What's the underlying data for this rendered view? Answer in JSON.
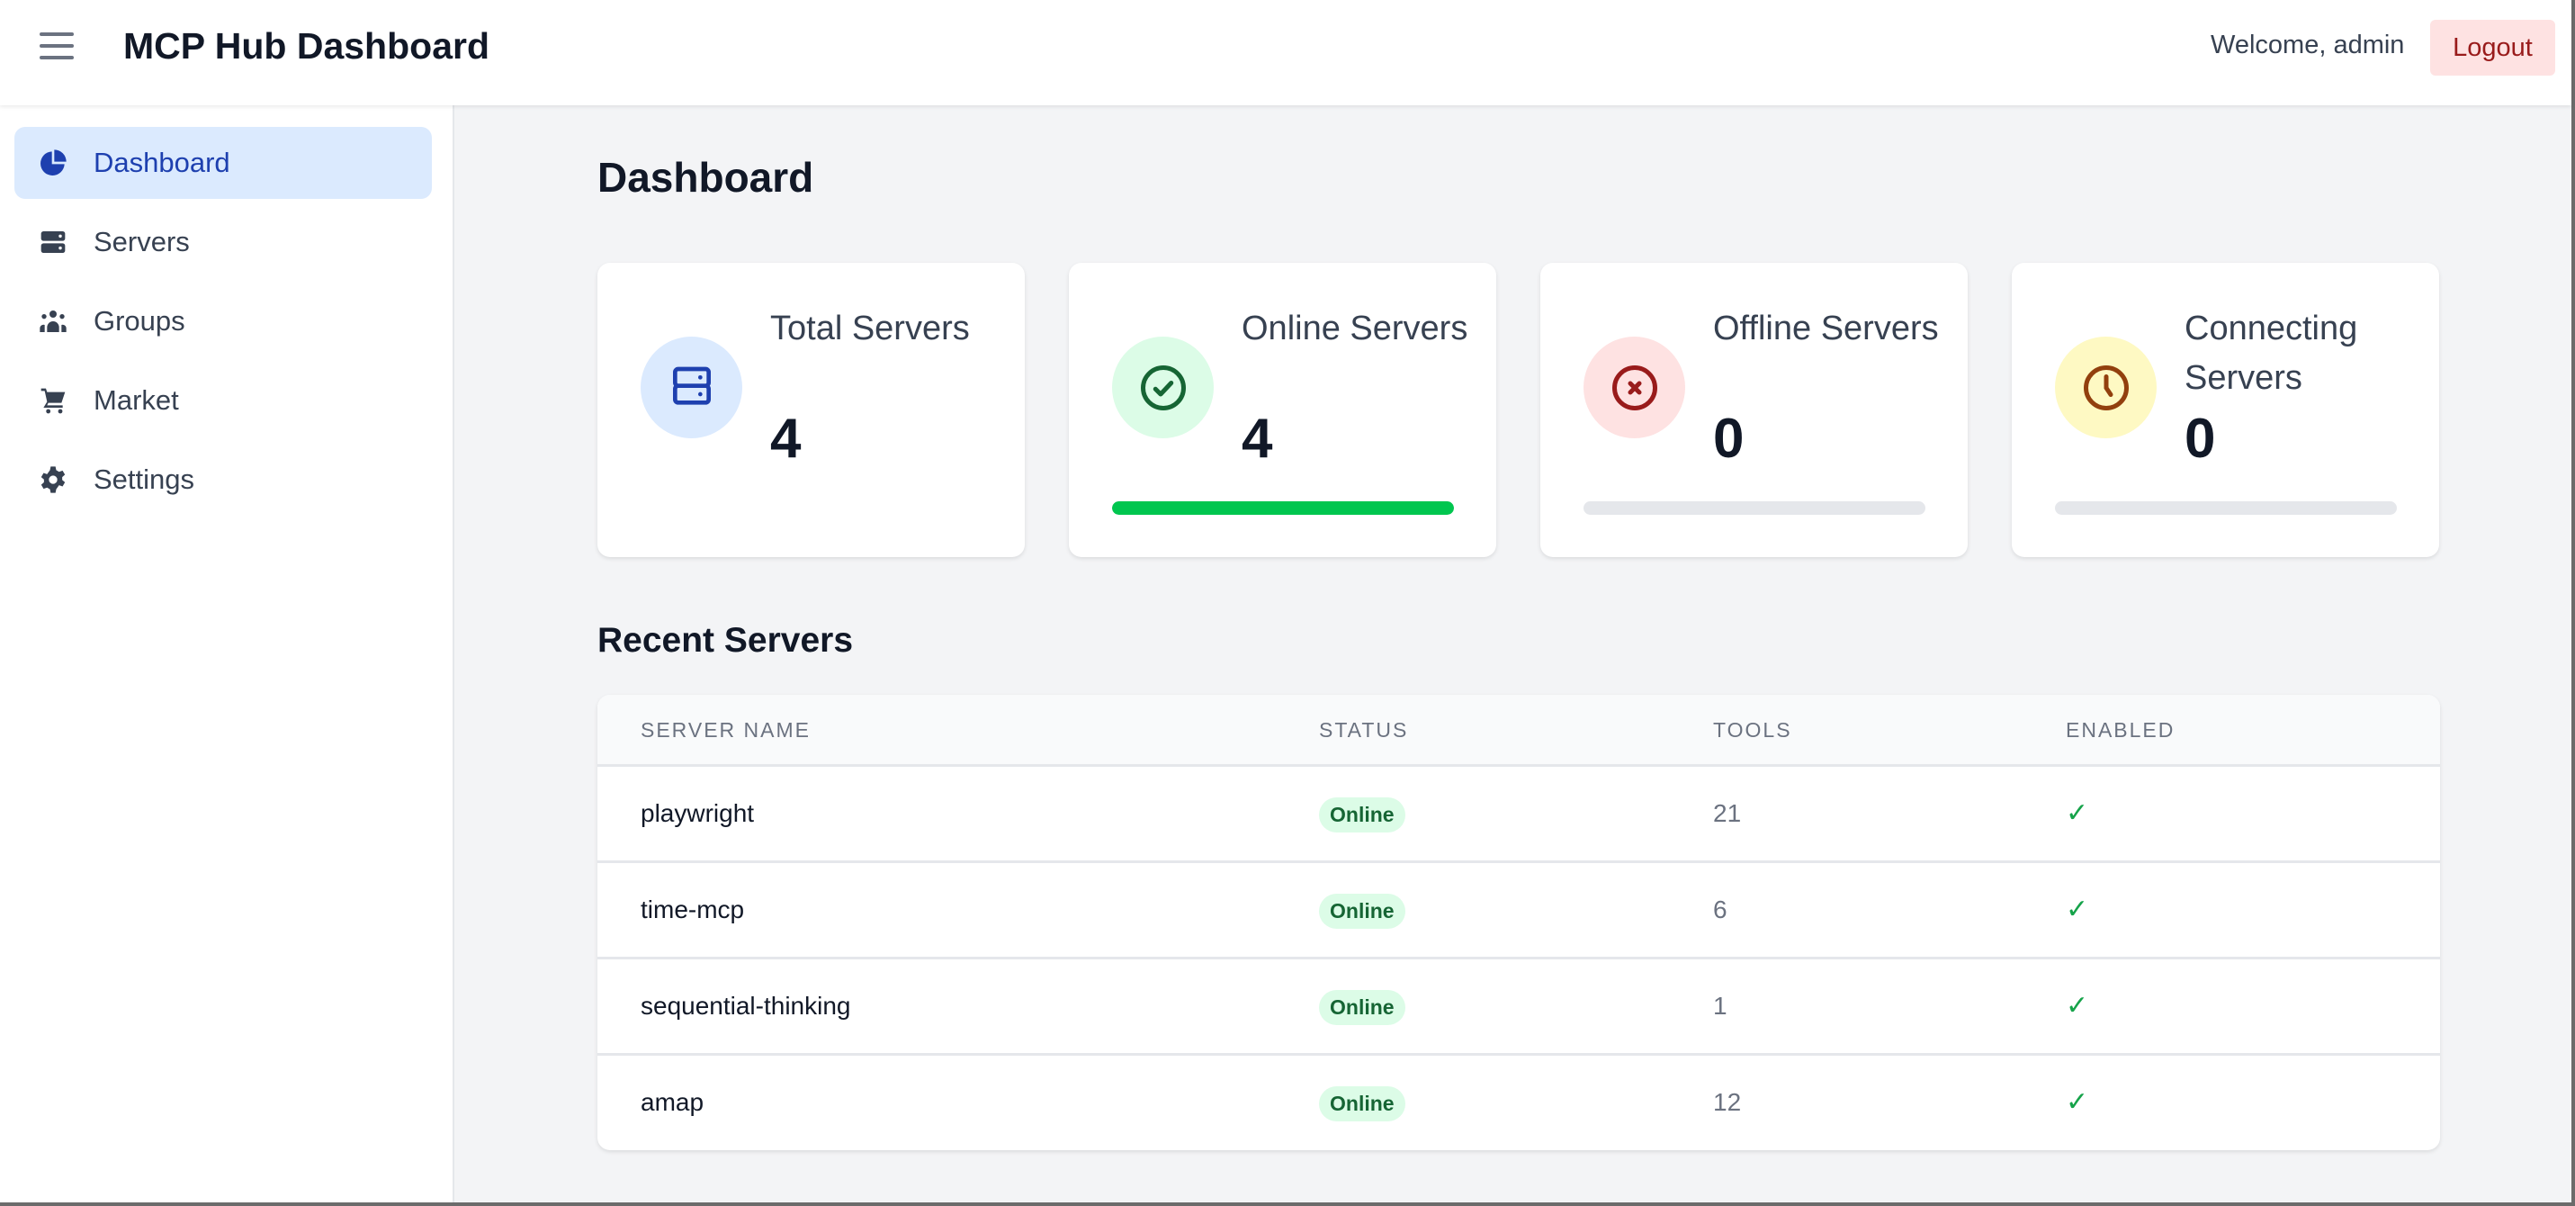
{
  "header": {
    "title": "MCP Hub Dashboard",
    "welcome": "Welcome, admin",
    "logout": "Logout"
  },
  "sidebar": {
    "items": [
      {
        "label": "Dashboard",
        "icon": "pie-chart-icon",
        "active": true
      },
      {
        "label": "Servers",
        "icon": "server-icon"
      },
      {
        "label": "Groups",
        "icon": "users-icon"
      },
      {
        "label": "Market",
        "icon": "cart-icon"
      },
      {
        "label": "Settings",
        "icon": "gear-icon"
      }
    ]
  },
  "main": {
    "title": "Dashboard",
    "cards": [
      {
        "label": "Total Servers",
        "value": "4",
        "icon": "server-icon",
        "color": "#1e40af",
        "bg": "#dbeafe"
      },
      {
        "label": "Online Servers",
        "value": "4",
        "icon": "check-circle-icon",
        "color": "#166534",
        "bg": "#dcfce7",
        "progress": 100,
        "bar_color": "#00c64f"
      },
      {
        "label": "Offline Servers",
        "value": "0",
        "icon": "x-circle-icon",
        "color": "#991b1b",
        "bg": "#fee2e2",
        "progress": 0
      },
      {
        "label": "Connecting Servers",
        "value": "0",
        "icon": "clock-icon",
        "color": "#92400e",
        "bg": "#fef9c3",
        "progress": 0
      }
    ],
    "recent": {
      "title": "Recent Servers",
      "columns": [
        "SERVER NAME",
        "STATUS",
        "TOOLS",
        "ENABLED"
      ],
      "rows": [
        {
          "name": "playwright",
          "status": "Online",
          "tools": "21",
          "enabled": "✓"
        },
        {
          "name": "time-mcp",
          "status": "Online",
          "tools": "6",
          "enabled": "✓"
        },
        {
          "name": "sequential-thinking",
          "status": "Online",
          "tools": "1",
          "enabled": "✓"
        },
        {
          "name": "amap",
          "status": "Online",
          "tools": "12",
          "enabled": "✓"
        }
      ]
    }
  }
}
